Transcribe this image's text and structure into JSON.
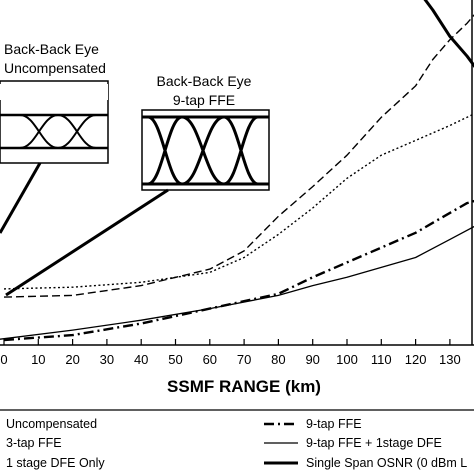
{
  "chart_data": {
    "type": "line",
    "xlabel": "SSMF RANGE (km)",
    "ylabel": "",
    "xlim": [
      -3,
      140
    ],
    "ylim": [
      0,
      100
    ],
    "x_ticks": [
      "0",
      "10",
      "20",
      "30",
      "40",
      "50",
      "60",
      "70",
      "80",
      "90",
      "100",
      "110",
      "120",
      "130"
    ],
    "grid": false,
    "legend_position": "bottom",
    "series": [
      {
        "name": "Uncompensated",
        "style": "dotted-fine",
        "x": [],
        "y": []
      },
      {
        "name": "3-tap FFE",
        "style": "dashed",
        "x": [
          0,
          20,
          40,
          60,
          70,
          80,
          90,
          100,
          110,
          120,
          125,
          130,
          135,
          140
        ],
        "y": [
          13,
          13.5,
          16.5,
          21.5,
          27,
          37.5,
          46.5,
          56,
          67.5,
          77,
          85,
          91,
          96,
          102
        ]
      },
      {
        "name": "1 stage DFE Only",
        "style": "dotted",
        "x": [
          0,
          20,
          40,
          60,
          70,
          80,
          90,
          100,
          110,
          120,
          130,
          140
        ],
        "y": [
          15.5,
          16,
          17.5,
          20.5,
          25,
          32,
          40,
          49,
          56,
          60.5,
          65,
          70
        ]
      },
      {
        "name": "9-tap FFE",
        "style": "dash-dot",
        "x": [
          0,
          20,
          40,
          60,
          80,
          90,
          100,
          110,
          120,
          130,
          135,
          140
        ],
        "y": [
          0,
          1.5,
          5,
          9.5,
          14,
          19,
          23.5,
          28,
          32.5,
          38.5,
          41.5,
          43
        ]
      },
      {
        "name": "9-tap FFE + 1stage DFE",
        "style": "solid-thin",
        "x": [
          -3,
          20,
          40,
          60,
          80,
          90,
          100,
          110,
          120,
          130,
          140
        ],
        "y": [
          0,
          3,
          6,
          9.5,
          13.5,
          16.5,
          19,
          22,
          25,
          30.5,
          36
        ]
      },
      {
        "name": "Single Span OSNR (0 dBm L",
        "style": "solid-thick",
        "x": [
          120,
          125,
          130,
          135,
          140
        ],
        "y": [
          107,
          100,
          92,
          86,
          79
        ]
      }
    ],
    "annotations": {
      "eye_uncompensated": [
        "Back-Back Eye",
        "Uncompensated"
      ],
      "eye_ffe": [
        "Back-Back Eye",
        "9-tap FFE"
      ]
    }
  }
}
